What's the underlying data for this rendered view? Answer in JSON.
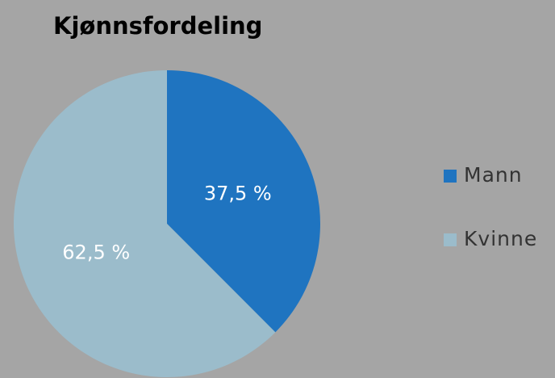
{
  "chart_data": {
    "type": "pie",
    "title": "Kjønnsfordeling",
    "categories": [
      "Mann",
      "Kvinne"
    ],
    "values": [
      37.5,
      62.5
    ],
    "value_labels": [
      "37,5 %",
      "62,5 %"
    ],
    "colors": [
      "#1f74c0",
      "#9bbccb"
    ],
    "legend": "right"
  }
}
